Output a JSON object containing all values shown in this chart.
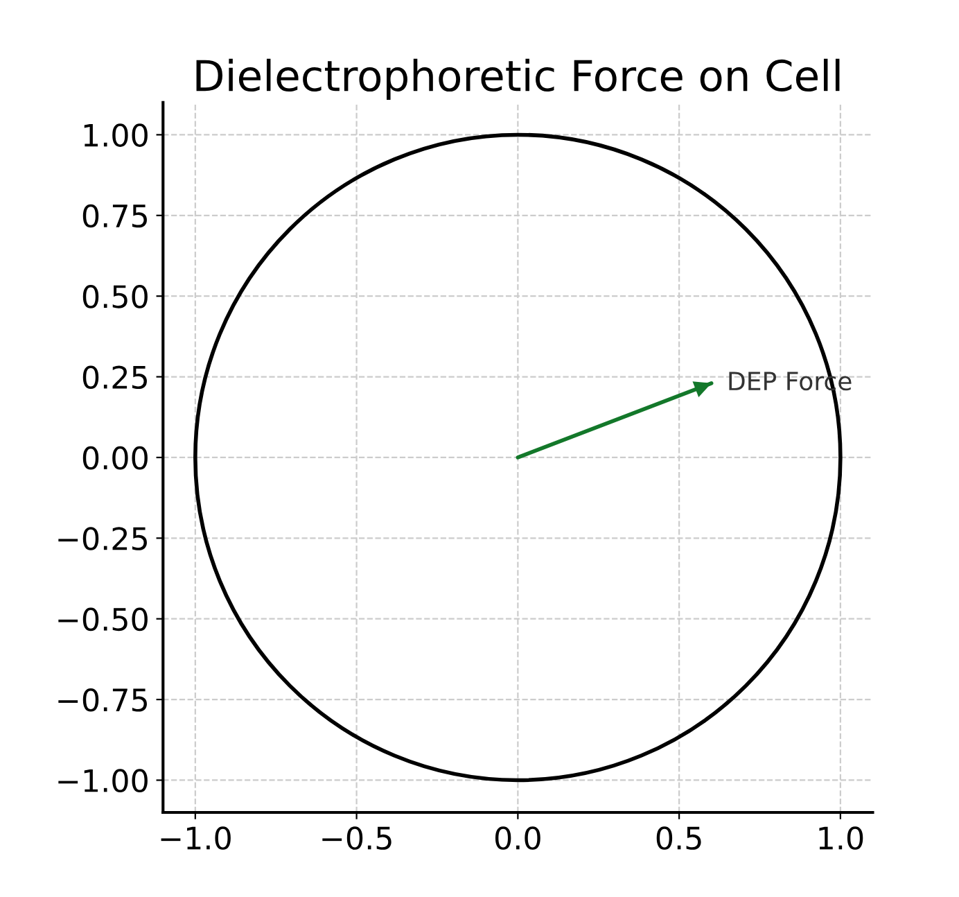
{
  "chart_data": {
    "type": "line",
    "title": "Dielectrophoretic Force on Cell",
    "series": [
      {
        "color": "#13782a",
        "x": [
          0,
          0.6
        ],
        "values": [
          0,
          0.23
        ]
      }
    ],
    "annotations": [
      {
        "text": "DEP Force",
        "x": 0.6,
        "y": 0.23
      }
    ],
    "xlim": [
      -1.1,
      1.1
    ],
    "ylim": [
      -1.1,
      1.1
    ],
    "xticks": [
      {
        "value": -1,
        "label": "−1.0"
      },
      {
        "value": -0.5,
        "label": "−0.5"
      },
      {
        "value": 0,
        "label": "0.0"
      },
      {
        "value": 0.5,
        "label": "0.5"
      },
      {
        "value": 1,
        "label": "1.0"
      }
    ],
    "yticks": [
      {
        "value": -1,
        "label": "−1.00"
      },
      {
        "value": -0.75,
        "label": "−0.75"
      },
      {
        "value": -0.5,
        "label": "−0.50"
      },
      {
        "value": -0.25,
        "label": "−0.25"
      },
      {
        "value": 0,
        "label": "0.00"
      },
      {
        "value": 0.25,
        "label": "0.25"
      },
      {
        "value": 0.5,
        "label": "0.50"
      },
      {
        "value": 0.75,
        "label": "0.75"
      },
      {
        "value": 1,
        "label": "1.00"
      }
    ],
    "grid": true,
    "legend": false,
    "line_style": "solid",
    "marker": "none"
  }
}
